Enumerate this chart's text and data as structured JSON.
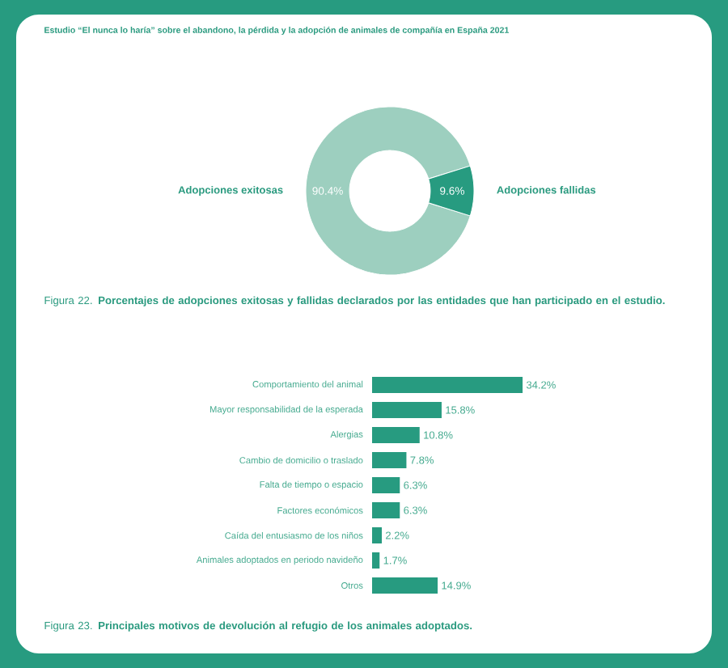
{
  "chart_data": [
    {
      "type": "donut",
      "title": "Figura 22. **Porcentajes de adopciones exitosas y fallidas declarados por las entidades que han participado en el estudio.**",
      "categories": [
        "Adopciones exitosas",
        "Adopciones fallidas"
      ],
      "values": [
        90.4,
        9.6
      ],
      "colors": [
        "#9dcfbf",
        "#279b80"
      ],
      "value_labels": [
        "90.4%",
        "9.6%"
      ],
      "annotations": [
        "Estudio “El nunca lo haría” sobre el abandono, la pérdida y la adopción de animales de compañía en España 2021"
      ]
    },
    {
      "type": "bar",
      "orientation": "horizontal",
      "title": "Figura 23. **Principales motivos de devolución al refugio de los animales adoptados.**",
      "categories": [
        "Comportamiento del animal",
        "Mayor responsabilidad de la esperada",
        "Alergias",
        "Cambio de domicilio o traslado",
        "Falta de tiempo o espacio",
        "Factores económicos",
        "Caída del entusiasmo de los niños",
        "Animales adoptados en periodo navideño",
        "Otros"
      ],
      "values": [
        34.2,
        15.8,
        10.8,
        7.8,
        6.3,
        6.3,
        2.2,
        1.7,
        14.9
      ],
      "color": "#279b80",
      "value_labels": [
        "34.2%",
        "15.8%",
        "10.8%",
        "7.8%",
        "6.3%",
        "6.3%",
        "2.2%",
        "1.7%",
        "14.9%"
      ]
    }
  ]
}
